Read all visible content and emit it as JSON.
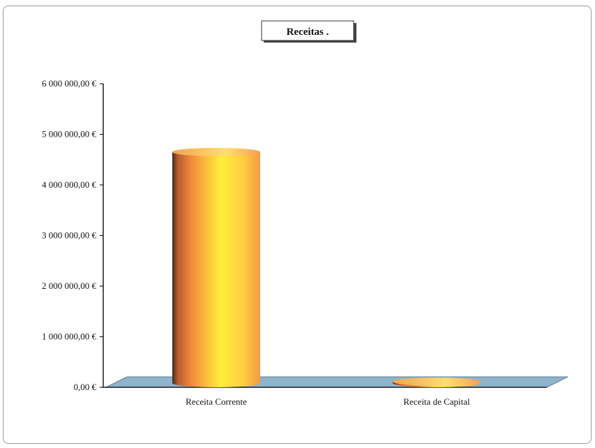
{
  "chart_data": {
    "type": "bar",
    "title": "Receitas .",
    "categories": [
      "Receita Corrente",
      "Receita de Capital"
    ],
    "series": [
      {
        "values": [
          4650000,
          15000
        ]
      }
    ],
    "ylim": [
      0,
      6000000
    ],
    "yticks": [
      "0,00 €",
      "1 000 000,00 €",
      "2 000 000,00 €",
      "3 000 000,00 €",
      "4 000 000,00 €",
      "5 000 000,00 €",
      "6 000 000,00 €"
    ],
    "ytick_values": [
      0,
      1000000,
      2000000,
      3000000,
      4000000,
      5000000,
      6000000
    ],
    "grid": false,
    "legend": "none",
    "bar_shape": "3d-cylinder",
    "colors": {
      "bar_light": "#ffee3a",
      "bar_mid": "#ffb347",
      "bar_dark": "#e8703a",
      "floor": "#8fb4cc",
      "axis": "#1a1a1a"
    }
  }
}
